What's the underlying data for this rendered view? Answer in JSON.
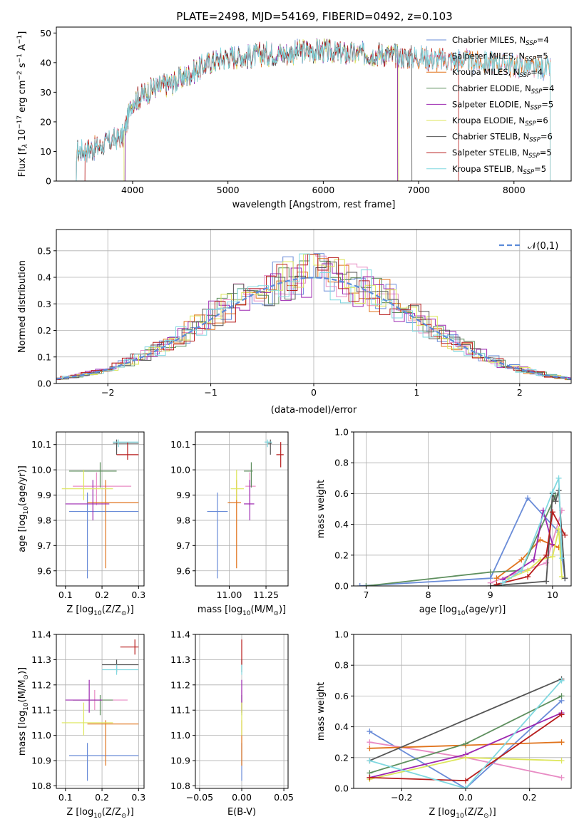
{
  "figure": {
    "title": "PLATE=2498, MJD=54169, FIBERID=0492, z=0.103"
  },
  "models": [
    {
      "name": "Chabrier MILES, N$_{SSP}$=4",
      "label_main": "Chabrier MILES, N",
      "label_sub": "SSP",
      "label_end": "=4",
      "color": "#6a8cd8"
    },
    {
      "name": "Salpeter MILES, N$_{SSP}$=5",
      "label_main": "Salpeter MILES, N",
      "label_sub": "SSP",
      "label_end": "=5",
      "color": "#e88bc4"
    },
    {
      "name": "Kroupa MILES, N$_{SSP}$=4",
      "label_main": "Kroupa MILES, N",
      "label_sub": "SSP",
      "label_end": "=4",
      "color": "#e0731c"
    },
    {
      "name": "Chabrier ELODIE, N$_{SSP}$=4",
      "label_main": "Chabrier ELODIE, N",
      "label_sub": "SSP",
      "label_end": "=4",
      "color": "#5e8f5e"
    },
    {
      "name": "Salpeter ELODIE, N$_{SSP}$=5",
      "label_main": "Salpeter ELODIE, N",
      "label_sub": "SSP",
      "label_end": "=5",
      "color": "#9c27b0"
    },
    {
      "name": "Kroupa ELODIE, N$_{SSP}$=6",
      "label_main": "Kroupa ELODIE, N",
      "label_sub": "SSP",
      "label_end": "=6",
      "color": "#dde65a"
    },
    {
      "name": "Chabrier STELIB, N$_{SSP}$=6",
      "label_main": "Chabrier STELIB, N",
      "label_sub": "SSP",
      "label_end": "=6",
      "color": "#555555"
    },
    {
      "name": "Salpeter STELIB, N$_{SSP}$=5",
      "label_main": "Salpeter STELIB, N",
      "label_sub": "SSP",
      "label_end": "=5",
      "color": "#b71c1c"
    },
    {
      "name": "Kroupa STELIB, N$_{SSP}$=5",
      "label_main": "Kroupa STELIB, N",
      "label_sub": "SSP",
      "label_end": "=5",
      "color": "#80d8e0"
    }
  ],
  "chart_data": [
    {
      "id": "spectrum",
      "type": "line",
      "xlabel": "wavelength [Angstrom, rest frame]",
      "ylabel_main": "Flux [f",
      "ylabel_rest": " 10",
      "ylabel_units": " erg cm",
      "ylabel_s": " s",
      "ylabel_A": " A",
      "xlim": [
        3200,
        8600
      ],
      "ylim": [
        0,
        52
      ],
      "xticks": [
        4000,
        5000,
        6000,
        7000,
        8000
      ],
      "yticks": [
        0,
        10,
        20,
        30,
        40,
        50
      ],
      "continuum": [
        [
          3400,
          10
        ],
        [
          3600,
          11
        ],
        [
          3800,
          14
        ],
        [
          3900,
          15
        ],
        [
          4000,
          27
        ],
        [
          4200,
          31
        ],
        [
          4400,
          33
        ],
        [
          4600,
          36
        ],
        [
          4800,
          40
        ],
        [
          5000,
          42
        ],
        [
          5200,
          42
        ],
        [
          5400,
          43
        ],
        [
          5600,
          43
        ],
        [
          5800,
          44
        ],
        [
          6000,
          44
        ],
        [
          6200,
          43
        ],
        [
          6400,
          43
        ],
        [
          6600,
          43
        ],
        [
          6800,
          42
        ],
        [
          7000,
          42
        ],
        [
          7200,
          41
        ],
        [
          7400,
          41
        ],
        [
          7600,
          40
        ],
        [
          7800,
          40
        ],
        [
          8000,
          39
        ],
        [
          8200,
          38
        ],
        [
          8400,
          38
        ]
      ],
      "model_ranges": [
        [
          3410,
          8380
        ],
        [
          3410,
          8380
        ],
        [
          3410,
          8380
        ],
        [
          3920,
          6780
        ],
        [
          3920,
          6780
        ],
        [
          3910,
          6790
        ],
        [
          3410,
          6930
        ],
        [
          3500,
          7420
        ],
        [
          3410,
          8380
        ]
      ]
    },
    {
      "id": "residuals",
      "type": "histogram",
      "xlabel": "(data-model)/error",
      "ylabel": "Normed distribution",
      "xlim": [
        -2.5,
        2.5
      ],
      "ylim": [
        0,
        0.58
      ],
      "xticks": [
        -2,
        -1,
        0,
        1,
        2
      ],
      "xtick_labels": [
        "−2",
        "−1",
        "0",
        "1",
        "2"
      ],
      "yticks": [
        0,
        0.1,
        0.2,
        0.3,
        0.4,
        0.5
      ],
      "ytick_labels": [
        "0.0",
        "0.1",
        "0.2",
        "0.3",
        "0.4",
        "0.5"
      ],
      "reference": {
        "label": "𝒩(0,1)",
        "mean": 0,
        "sigma": 1,
        "color": "#5b8bd9"
      },
      "bin_width": 0.1
    },
    {
      "id": "age-vs-Z",
      "type": "errorbar",
      "xlabel": "Z [log",
      "xlabel_sub": "10",
      "xlabel_end": "(Z/Z",
      "ylabel": "age  [log",
      "ylabel_end": "(age/yr)]",
      "xlim": [
        0.075,
        0.315
      ],
      "ylim": [
        9.54,
        10.15
      ],
      "xticks": [
        0.1,
        0.2,
        0.3
      ],
      "xtick_labels": [
        "0.1",
        "0.2",
        "0.3"
      ],
      "yticks": [
        9.6,
        9.7,
        9.8,
        9.9,
        10.0,
        10.1
      ],
      "ytick_labels": [
        "9.6",
        "9.7",
        "9.8",
        "9.9",
        "10.0",
        "10.1"
      ],
      "points": [
        {
          "x": 0.16,
          "xerr": [
            0.11,
            0.3
          ],
          "y": 9.835,
          "yerr": [
            9.57,
            9.91
          ]
        },
        {
          "x": 0.185,
          "xerr": [
            0.12,
            0.28
          ],
          "y": 9.935,
          "yerr": [
            9.86,
            9.99
          ]
        },
        {
          "x": 0.21,
          "xerr": [
            0.16,
            0.3
          ],
          "y": 9.87,
          "yerr": [
            9.61,
            9.96
          ]
        },
        {
          "x": 0.195,
          "xerr": [
            0.11,
            0.24
          ],
          "y": 9.995,
          "yerr": [
            9.93,
            10.03
          ]
        },
        {
          "x": 0.175,
          "xerr": [
            0.1,
            0.22
          ],
          "y": 9.865,
          "yerr": [
            9.8,
            9.96
          ]
        },
        {
          "x": 0.15,
          "xerr": [
            0.09,
            0.23
          ],
          "y": 9.925,
          "yerr": [
            9.88,
            10.0
          ]
        },
        {
          "x": 0.24,
          "xerr": [
            0.23,
            0.3
          ],
          "y": 10.105,
          "yerr": [
            10.06,
            10.12
          ]
        },
        {
          "x": 0.27,
          "xerr": [
            0.24,
            0.3
          ],
          "y": 10.06,
          "yerr": [
            10.04,
            10.11
          ]
        },
        {
          "x": 0.245,
          "xerr": [
            0.23,
            0.3
          ],
          "y": 10.11,
          "yerr": [
            10.09,
            10.12
          ]
        }
      ]
    },
    {
      "id": "age-vs-mass",
      "type": "errorbar",
      "xlabel": "mass [log",
      "xlabel_sub": "10",
      "xlabel_end": "(M/M",
      "xlim": [
        10.77,
        11.4
      ],
      "ylim": [
        9.54,
        10.15
      ],
      "xticks": [
        11.0,
        11.25
      ],
      "xtick_labels": [
        "11.00",
        "11.25"
      ],
      "yticks": [
        9.6,
        9.7,
        9.8,
        9.9,
        10.0,
        10.1
      ],
      "ytick_labels": [
        "9.6",
        "9.7",
        "9.8",
        "9.9",
        "10.0",
        "10.1"
      ],
      "points": [
        {
          "x": 10.92,
          "xerr": [
            10.85,
            10.99
          ],
          "y": 9.835,
          "yerr": [
            9.57,
            9.91
          ]
        },
        {
          "x": 11.14,
          "xerr": [
            11.11,
            11.18
          ],
          "y": 9.935,
          "yerr": [
            9.86,
            9.99
          ]
        },
        {
          "x": 11.05,
          "xerr": [
            10.99,
            11.08
          ],
          "y": 9.87,
          "yerr": [
            9.61,
            9.96
          ]
        },
        {
          "x": 11.15,
          "xerr": [
            11.1,
            11.16
          ],
          "y": 9.995,
          "yerr": [
            9.93,
            10.03
          ]
        },
        {
          "x": 11.14,
          "xerr": [
            11.1,
            11.17
          ],
          "y": 9.865,
          "yerr": [
            9.8,
            9.96
          ]
        },
        {
          "x": 11.05,
          "xerr": [
            11.01,
            11.1
          ],
          "y": 9.925,
          "yerr": [
            9.88,
            10.0
          ]
        },
        {
          "x": 11.28,
          "xerr": [
            11.26,
            11.29
          ],
          "y": 10.105,
          "yerr": [
            10.06,
            10.12
          ]
        },
        {
          "x": 11.35,
          "xerr": [
            11.32,
            11.37
          ],
          "y": 10.06,
          "yerr": [
            10.01,
            10.11
          ]
        },
        {
          "x": 11.26,
          "xerr": [
            11.24,
            11.29
          ],
          "y": 10.11,
          "yerr": [
            10.09,
            10.12
          ]
        }
      ]
    },
    {
      "id": "mass-weight-vs-age",
      "type": "line",
      "xlabel": "age  [log",
      "xlabel_end": "(age/yr)]",
      "ylabel": "mass weight",
      "xlim": [
        6.8,
        10.3
      ],
      "ylim": [
        0,
        1
      ],
      "xticks": [
        7,
        8,
        9,
        10
      ],
      "xtick_labels": [
        "7",
        "8",
        "9",
        "10"
      ],
      "yticks": [
        0,
        0.2,
        0.4,
        0.6,
        0.8,
        1.0
      ],
      "ytick_labels": [
        "0.0",
        "0.2",
        "0.4",
        "0.6",
        "0.8",
        "1.0"
      ],
      "series": [
        {
          "x": [
            6.9,
            9.0,
            9.6,
            10.1,
            10.2
          ],
          "y": [
            0.0,
            0.05,
            0.57,
            0.35,
            0.05
          ]
        },
        {
          "x": [
            9.0,
            9.4,
            9.9,
            10.15
          ],
          "y": [
            0.02,
            0.08,
            0.15,
            0.49
          ]
        },
        {
          "x": [
            9.1,
            9.5,
            9.8,
            10.1
          ],
          "y": [
            0.05,
            0.17,
            0.3,
            0.25
          ]
        },
        {
          "x": [
            7.0,
            9.0,
            9.5,
            10.05
          ],
          "y": [
            0.0,
            0.09,
            0.1,
            0.59
          ]
        },
        {
          "x": [
            9.2,
            9.7,
            9.85,
            10.0
          ],
          "y": [
            0.04,
            0.17,
            0.49,
            0.27
          ]
        },
        {
          "x": [
            9.3,
            9.6,
            9.8,
            10.0,
            10.1,
            10.15
          ],
          "y": [
            0.05,
            0.1,
            0.17,
            0.19,
            0.37,
            0.06
          ]
        },
        {
          "x": [
            9.0,
            9.9,
            10.0,
            10.05,
            10.1,
            10.2
          ],
          "y": [
            0.0,
            0.03,
            0.6,
            0.55,
            0.62,
            0.05
          ]
        },
        {
          "x": [
            9.1,
            9.6,
            9.9,
            10.0,
            10.2
          ],
          "y": [
            0.01,
            0.06,
            0.2,
            0.48,
            0.33
          ]
        },
        {
          "x": [
            9.2,
            9.5,
            10.0,
            10.1,
            10.15
          ],
          "y": [
            0.02,
            0.1,
            0.61,
            0.7,
            0.18
          ]
        }
      ]
    },
    {
      "id": "mass-vs-Z",
      "type": "errorbar",
      "xlabel": "Z [log",
      "xlabel_sub": "10",
      "xlabel_end": "(Z/Z",
      "ylabel": "mass [log",
      "ylabel_end": "(M/M",
      "xlim": [
        0.075,
        0.315
      ],
      "ylim": [
        10.79,
        11.4
      ],
      "xticks": [
        0.1,
        0.2,
        0.3
      ],
      "xtick_labels": [
        "0.1",
        "0.2",
        "0.3"
      ],
      "yticks": [
        10.8,
        10.9,
        11.0,
        11.1,
        11.2,
        11.3,
        11.4
      ],
      "ytick_labels": [
        "10.8",
        "10.9",
        "11.0",
        "11.1",
        "11.2",
        "11.3",
        "11.4"
      ],
      "points": [
        {
          "x": 0.16,
          "xerr": [
            0.11,
            0.3
          ],
          "y": 10.92,
          "yerr": [
            10.82,
            10.97
          ]
        },
        {
          "x": 0.18,
          "xerr": [
            0.12,
            0.27
          ],
          "y": 11.14,
          "yerr": [
            11.1,
            11.18
          ]
        },
        {
          "x": 0.21,
          "xerr": [
            0.16,
            0.3
          ],
          "y": 11.045,
          "yerr": [
            10.88,
            11.06
          ]
        },
        {
          "x": 0.195,
          "xerr": [
            0.12,
            0.23
          ],
          "y": 11.14,
          "yerr": [
            11.08,
            11.16
          ]
        },
        {
          "x": 0.165,
          "xerr": [
            0.1,
            0.2
          ],
          "y": 11.14,
          "yerr": [
            11.09,
            11.22
          ]
        },
        {
          "x": 0.15,
          "xerr": [
            0.09,
            0.23
          ],
          "y": 11.05,
          "yerr": [
            11.0,
            11.13
          ]
        },
        {
          "x": 0.24,
          "xerr": [
            0.2,
            0.3
          ],
          "y": 11.28,
          "yerr": [
            11.25,
            11.3
          ]
        },
        {
          "x": 0.29,
          "xerr": [
            0.25,
            0.3
          ],
          "y": 11.35,
          "yerr": [
            11.32,
            11.38
          ]
        },
        {
          "x": 0.24,
          "xerr": [
            0.2,
            0.3
          ],
          "y": 11.26,
          "yerr": [
            11.24,
            11.28
          ]
        }
      ]
    },
    {
      "id": "mass-vs-EBV",
      "type": "errorbar",
      "xlabel": "E(B-V)",
      "xlim": [
        -0.055,
        0.055
      ],
      "ylim": [
        10.79,
        11.4
      ],
      "xticks": [
        -0.05,
        0.0,
        0.05
      ],
      "xtick_labels": [
        "−0.05",
        "0.00",
        "0.05"
      ],
      "yticks": [
        10.8,
        10.9,
        11.0,
        11.1,
        11.2,
        11.3,
        11.4
      ],
      "ytick_labels": [
        "10.8",
        "10.9",
        "11.0",
        "11.1",
        "11.2",
        "11.3",
        "11.4"
      ],
      "points": [
        {
          "x": 0.0,
          "xerr": [
            0.0,
            0.0
          ],
          "y": 10.92,
          "yerr": [
            10.82,
            10.97
          ]
        },
        {
          "x": 0.0,
          "xerr": [
            0.0,
            0.0
          ],
          "y": 11.14,
          "yerr": [
            11.1,
            11.18
          ]
        },
        {
          "x": 0.0,
          "xerr": [
            0.0,
            0.0
          ],
          "y": 11.0,
          "yerr": [
            10.88,
            11.06
          ]
        },
        {
          "x": 0.0,
          "xerr": [
            0.0,
            0.0
          ],
          "y": 11.14,
          "yerr": [
            11.08,
            11.16
          ]
        },
        {
          "x": 0.0,
          "xerr": [
            0.0,
            0.0
          ],
          "y": 11.14,
          "yerr": [
            11.09,
            11.22
          ]
        },
        {
          "x": 0.0,
          "xerr": [
            0.0,
            0.0
          ],
          "y": 11.05,
          "yerr": [
            11.0,
            11.13
          ]
        },
        {
          "x": 0.0,
          "xerr": [
            0.0,
            0.0
          ],
          "y": 11.28,
          "yerr": [
            11.25,
            11.3
          ]
        },
        {
          "x": 0.0,
          "xerr": [
            0.0,
            0.0
          ],
          "y": 11.33,
          "yerr": [
            11.28,
            11.38
          ]
        },
        {
          "x": 0.0,
          "xerr": [
            0.0,
            0.0
          ],
          "y": 11.26,
          "yerr": [
            11.24,
            11.28
          ]
        }
      ]
    },
    {
      "id": "mass-weight-vs-Z",
      "type": "line",
      "xlabel": "Z [log",
      "xlabel_sub": "10",
      "xlabel_end": "(Z/Z",
      "ylabel": "mass weight",
      "xlim": [
        -0.35,
        0.33
      ],
      "ylim": [
        0,
        1
      ],
      "xticks": [
        -0.2,
        0.0,
        0.2
      ],
      "xtick_labels": [
        "−0.2",
        "0.0",
        "0.2"
      ],
      "yticks": [
        0,
        0.2,
        0.4,
        0.6,
        0.8,
        1.0
      ],
      "ytick_labels": [
        "0.0",
        "0.2",
        "0.4",
        "0.6",
        "0.8",
        "1.0"
      ],
      "series": [
        {
          "x": [
            -0.3,
            0.0,
            0.3
          ],
          "y": [
            0.37,
            0.0,
            0.57
          ]
        },
        {
          "x": [
            -0.3,
            0.0,
            0.3
          ],
          "y": [
            0.3,
            0.2,
            0.07
          ]
        },
        {
          "x": [
            -0.3,
            0.0,
            0.3
          ],
          "y": [
            0.26,
            0.28,
            0.3
          ]
        },
        {
          "x": [
            -0.3,
            0.0,
            0.3
          ],
          "y": [
            0.1,
            0.29,
            0.6
          ]
        },
        {
          "x": [
            -0.3,
            0.0,
            0.3
          ],
          "y": [
            0.07,
            0.22,
            0.49
          ]
        },
        {
          "x": [
            -0.3,
            0.0,
            0.3
          ],
          "y": [
            0.06,
            0.2,
            0.18
          ]
        },
        {
          "x": [
            -0.3,
            0.3
          ],
          "y": [
            0.18,
            0.71
          ]
        },
        {
          "x": [
            -0.3,
            0.0,
            0.3
          ],
          "y": [
            0.07,
            0.05,
            0.48
          ]
        },
        {
          "x": [
            -0.3,
            0.0,
            0.3
          ],
          "y": [
            0.18,
            0.0,
            0.7
          ]
        }
      ]
    }
  ]
}
